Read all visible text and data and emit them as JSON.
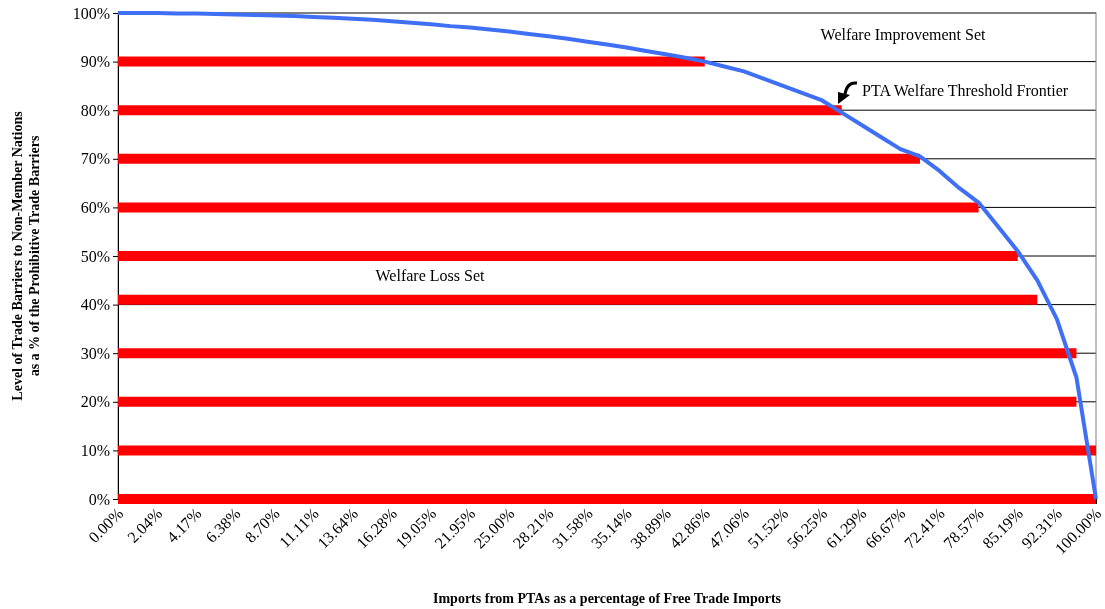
{
  "chart_data": {
    "type": "line",
    "xlabel": "Imports from PTAs as a percentage of Free Trade Imports",
    "ylabel": "Level of Trade Barriers to Non-Member Nations\nas a % of the Prohibitive Trade Barriers",
    "categories": [
      "0.00%",
      null,
      "2.04%",
      null,
      "4.17%",
      null,
      "6.38%",
      null,
      "8.70%",
      null,
      "11.11%",
      null,
      "13.64%",
      null,
      "16.28%",
      null,
      "19.05%",
      null,
      "21.95%",
      null,
      "25.00%",
      null,
      "28.21%",
      null,
      "31.58%",
      null,
      "35.14%",
      null,
      "38.89%",
      null,
      "42.86%",
      null,
      "47.06%",
      null,
      "51.52%",
      null,
      "56.25%",
      null,
      "61.29%",
      null,
      "66.67%",
      null,
      "72.41%",
      null,
      "78.57%",
      null,
      "85.19%",
      null,
      "92.31%",
      null,
      "100.00%"
    ],
    "ylim": [
      0,
      100
    ],
    "yticks": [
      {
        "value": 0,
        "label": "0%"
      },
      {
        "value": 10,
        "label": "10%"
      },
      {
        "value": 20,
        "label": "20%"
      },
      {
        "value": 30,
        "label": "30%"
      },
      {
        "value": 40,
        "label": "40%"
      },
      {
        "value": 50,
        "label": "50%"
      },
      {
        "value": 60,
        "label": "60%"
      },
      {
        "value": 70,
        "label": "70%"
      },
      {
        "value": 80,
        "label": "80%"
      },
      {
        "value": 90,
        "label": "90%"
      },
      {
        "value": 100,
        "label": "100%"
      }
    ],
    "grid": "y",
    "marker": "none",
    "line_style": "solid",
    "annotations": [
      "Welfare Improvement Set",
      "PTA Welfare Threshold Frontier",
      "Welfare Loss Set"
    ],
    "series": [
      {
        "color": "#ff0000",
        "values": [
          90,
          90,
          90,
          90,
          90,
          90,
          90,
          90,
          90,
          90,
          90,
          90,
          90,
          90,
          90,
          90,
          90,
          90,
          90,
          90,
          90,
          90,
          90,
          90,
          90,
          90,
          90,
          90,
          90,
          90,
          90,
          null,
          null,
          null,
          null,
          null,
          null,
          null,
          null,
          null,
          null,
          null,
          null,
          null,
          null,
          null,
          null,
          null,
          null,
          null,
          null
        ]
      },
      {
        "color": "#ff0000",
        "values": [
          80,
          80,
          80,
          80,
          80,
          80,
          80,
          80,
          80,
          80,
          80,
          80,
          80,
          80,
          80,
          80,
          80,
          80,
          80,
          80,
          80,
          80,
          80,
          80,
          80,
          80,
          80,
          80,
          80,
          80,
          80,
          80,
          80,
          80,
          80,
          80,
          80,
          80,
          null,
          null,
          null,
          null,
          null,
          null,
          null,
          null,
          null,
          null,
          null,
          null,
          null
        ]
      },
      {
        "color": "#ff0000",
        "values": [
          70,
          70,
          70,
          70,
          70,
          70,
          70,
          70,
          70,
          70,
          70,
          70,
          70,
          70,
          70,
          70,
          70,
          70,
          70,
          70,
          70,
          70,
          70,
          70,
          70,
          70,
          70,
          70,
          70,
          70,
          70,
          70,
          70,
          70,
          70,
          70,
          70,
          70,
          70,
          70,
          70,
          70,
          null,
          null,
          null,
          null,
          null,
          null,
          null,
          null,
          null
        ]
      },
      {
        "color": "#ff0000",
        "values": [
          60,
          60,
          60,
          60,
          60,
          60,
          60,
          60,
          60,
          60,
          60,
          60,
          60,
          60,
          60,
          60,
          60,
          60,
          60,
          60,
          60,
          60,
          60,
          60,
          60,
          60,
          60,
          60,
          60,
          60,
          60,
          60,
          60,
          60,
          60,
          60,
          60,
          60,
          60,
          60,
          60,
          60,
          60,
          60,
          60,
          null,
          null,
          null,
          null,
          null,
          null
        ]
      },
      {
        "color": "#ff0000",
        "values": [
          50,
          50,
          50,
          50,
          50,
          50,
          50,
          50,
          50,
          50,
          50,
          50,
          50,
          50,
          50,
          50,
          50,
          50,
          50,
          50,
          50,
          50,
          50,
          50,
          50,
          50,
          50,
          50,
          50,
          50,
          50,
          50,
          50,
          50,
          50,
          50,
          50,
          50,
          50,
          50,
          50,
          50,
          50,
          50,
          50,
          50,
          50,
          null,
          null,
          null,
          null
        ]
      },
      {
        "color": "#ff0000",
        "values": [
          41,
          41,
          41,
          41,
          41,
          41,
          41,
          41,
          41,
          41,
          41,
          41,
          41,
          41,
          41,
          41,
          41,
          41,
          41,
          41,
          41,
          41,
          41,
          41,
          41,
          41,
          41,
          41,
          41,
          41,
          41,
          41,
          41,
          41,
          41,
          41,
          41,
          41,
          41,
          41,
          41,
          41,
          41,
          41,
          41,
          41,
          41,
          41,
          null,
          null,
          null
        ]
      },
      {
        "color": "#ff0000",
        "values": [
          30,
          30,
          30,
          30,
          30,
          30,
          30,
          30,
          30,
          30,
          30,
          30,
          30,
          30,
          30,
          30,
          30,
          30,
          30,
          30,
          30,
          30,
          30,
          30,
          30,
          30,
          30,
          30,
          30,
          30,
          30,
          30,
          30,
          30,
          30,
          30,
          30,
          30,
          30,
          30,
          30,
          30,
          30,
          30,
          30,
          30,
          30,
          30,
          30,
          30,
          null
        ]
      },
      {
        "color": "#ff0000",
        "values": [
          20,
          20,
          20,
          20,
          20,
          20,
          20,
          20,
          20,
          20,
          20,
          20,
          20,
          20,
          20,
          20,
          20,
          20,
          20,
          20,
          20,
          20,
          20,
          20,
          20,
          20,
          20,
          20,
          20,
          20,
          20,
          20,
          20,
          20,
          20,
          20,
          20,
          20,
          20,
          20,
          20,
          20,
          20,
          20,
          20,
          20,
          20,
          20,
          20,
          20,
          null
        ]
      },
      {
        "color": "#ff0000",
        "values": [
          10,
          10,
          10,
          10,
          10,
          10,
          10,
          10,
          10,
          10,
          10,
          10,
          10,
          10,
          10,
          10,
          10,
          10,
          10,
          10,
          10,
          10,
          10,
          10,
          10,
          10,
          10,
          10,
          10,
          10,
          10,
          10,
          10,
          10,
          10,
          10,
          10,
          10,
          10,
          10,
          10,
          10,
          10,
          10,
          10,
          10,
          10,
          10,
          10,
          10,
          10
        ]
      },
      {
        "color": "#ff0000",
        "values": [
          0,
          0,
          0,
          0,
          0,
          0,
          0,
          0,
          0,
          0,
          0,
          0,
          0,
          0,
          0,
          0,
          0,
          0,
          0,
          0,
          0,
          0,
          0,
          0,
          0,
          0,
          0,
          0,
          0,
          0,
          0,
          0,
          0,
          0,
          0,
          0,
          0,
          0,
          0,
          0,
          0,
          0,
          0,
          0,
          0,
          0,
          0,
          0,
          0,
          0,
          0
        ]
      },
      {
        "color": "#3f6ff5",
        "values": [
          100,
          100,
          100,
          99.9,
          99.9,
          99.8,
          99.7,
          99.6,
          99.5,
          99.4,
          99.2,
          99,
          98.8,
          98.6,
          98.3,
          98,
          97.7,
          97.3,
          97,
          96.6,
          96.2,
          95.7,
          95.2,
          94.7,
          94.1,
          93.5,
          92.9,
          92.2,
          91.5,
          90.8,
          90,
          89,
          88,
          86.5,
          85,
          83.5,
          82,
          79.5,
          77,
          74.5,
          72,
          70.5,
          67.5,
          64,
          61,
          56,
          51,
          45,
          37,
          25,
          0
        ]
      }
    ]
  }
}
